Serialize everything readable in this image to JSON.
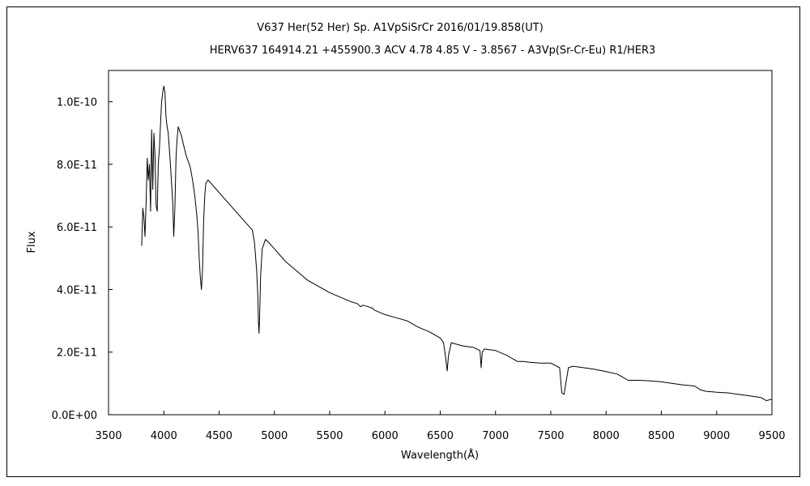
{
  "chart_data": {
    "type": "line",
    "title": "V637 Her(52 Her)   Sp. A1VpSiSrCr   2016/01/19.858(UT)",
    "subtitle": "HERV637 164914.21 +455900.3 ACV 4.78 4.85 V - 3.8567 - A3Vp(Sr-Cr-Eu) R1/HER3",
    "xlabel": "Wavelength(Å)",
    "ylabel": "Flux",
    "xlim": [
      3500,
      9500
    ],
    "ylim": [
      0,
      1.1e-10
    ],
    "grid": false,
    "x_ticks": [
      3500,
      4000,
      4500,
      5000,
      5500,
      6000,
      6500,
      7000,
      7500,
      8000,
      8500,
      9000,
      9500
    ],
    "x_tick_labels": [
      "3500",
      "4000",
      "4500",
      "5000",
      "5500",
      "6000",
      "6500",
      "7000",
      "7500",
      "8000",
      "8500",
      "9000",
      "9500"
    ],
    "y_ticks": [
      0,
      2e-11,
      4e-11,
      6e-11,
      8e-11,
      1e-10
    ],
    "y_tick_labels": [
      "0.0E+00",
      "2.0E-11",
      "4.0E-11",
      "6.0E-11",
      "8.0E-11",
      "1.0E-10"
    ],
    "series": [
      {
        "color": "#000000",
        "x": [
          3800,
          3810,
          3820,
          3830,
          3840,
          3850,
          3860,
          3870,
          3880,
          3890,
          3900,
          3910,
          3920,
          3930,
          3940,
          3950,
          3960,
          3970,
          3980,
          3990,
          4000,
          4010,
          4020,
          4030,
          4040,
          4060,
          4080,
          4090,
          4100,
          4110,
          4120,
          4130,
          4140,
          4160,
          4180,
          4200,
          4220,
          4240,
          4260,
          4280,
          4300,
          4310,
          4320,
          4330,
          4340,
          4350,
          4360,
          4370,
          4380,
          4400,
          4450,
          4500,
          4550,
          4600,
          4650,
          4700,
          4750,
          4800,
          4820,
          4840,
          4850,
          4855,
          4861,
          4867,
          4875,
          4890,
          4920,
          4950,
          5000,
          5050,
          5100,
          5200,
          5300,
          5400,
          5500,
          5600,
          5700,
          5750,
          5780,
          5800,
          5850,
          5890,
          5900,
          6000,
          6100,
          6200,
          6300,
          6400,
          6500,
          6530,
          6550,
          6563,
          6575,
          6600,
          6700,
          6800,
          6860,
          6870,
          6880,
          6900,
          7000,
          7100,
          7150,
          7200,
          7250,
          7300,
          7400,
          7500,
          7580,
          7600,
          7620,
          7640,
          7660,
          7700,
          7800,
          7900,
          8000,
          8100,
          8150,
          8200,
          8300,
          8400,
          8500,
          8600,
          8700,
          8800,
          8850,
          8900,
          9000,
          9100,
          9200,
          9300,
          9400,
          9450,
          9500
        ],
        "y": [
          5.4e-11,
          6.6e-11,
          6.3e-11,
          5.7e-11,
          6.8e-11,
          8.2e-11,
          7.5e-11,
          8e-11,
          6.5e-11,
          9.1e-11,
          7.2e-11,
          9e-11,
          8.3e-11,
          6.7e-11,
          6.5e-11,
          8e-11,
          8.5e-11,
          9.3e-11,
          1e-10,
          1.03e-10,
          1.05e-10,
          1.03e-10,
          9.5e-11,
          9.2e-11,
          9e-11,
          8e-11,
          6.8e-11,
          5.7e-11,
          6.6e-11,
          8.2e-11,
          8.8e-11,
          9.2e-11,
          9.1e-11,
          8.9e-11,
          8.6e-11,
          8.3e-11,
          8.1e-11,
          7.9e-11,
          7.5e-11,
          7e-11,
          6.3e-11,
          5.8e-11,
          5e-11,
          4.4e-11,
          4e-11,
          4.6e-11,
          6.2e-11,
          7e-11,
          7.4e-11,
          7.5e-11,
          7.3e-11,
          7.1e-11,
          6.9e-11,
          6.7e-11,
          6.5e-11,
          6.3e-11,
          6.1e-11,
          5.9e-11,
          5.5e-11,
          4.6e-11,
          3.8e-11,
          3e-11,
          2.6e-11,
          3.2e-11,
          4.4e-11,
          5.3e-11,
          5.6e-11,
          5.5e-11,
          5.3e-11,
          5.1e-11,
          4.9e-11,
          4.6e-11,
          4.3e-11,
          4.1e-11,
          3.9e-11,
          3.75e-11,
          3.6e-11,
          3.55e-11,
          3.45e-11,
          3.5e-11,
          3.45e-11,
          3.4e-11,
          3.35e-11,
          3.2e-11,
          3.1e-11,
          3e-11,
          2.8e-11,
          2.65e-11,
          2.45e-11,
          2.3e-11,
          1.8e-11,
          1.4e-11,
          1.9e-11,
          2.3e-11,
          2.2e-11,
          2.15e-11,
          2.05e-11,
          1.5e-11,
          2e-11,
          2.1e-11,
          2.05e-11,
          1.9e-11,
          1.8e-11,
          1.7e-11,
          1.7e-11,
          1.68e-11,
          1.65e-11,
          1.65e-11,
          1.5e-11,
          7e-12,
          6.5e-12,
          1.1e-11,
          1.5e-11,
          1.55e-11,
          1.5e-11,
          1.45e-11,
          1.38e-11,
          1.3e-11,
          1.2e-11,
          1.1e-11,
          1.1e-11,
          1.08e-11,
          1.05e-11,
          1e-11,
          9.5e-12,
          9.2e-12,
          8e-12,
          7.5e-12,
          7.2e-12,
          7e-12,
          6.5e-12,
          6e-12,
          5.5e-12,
          4.5e-12,
          5e-12
        ]
      }
    ]
  }
}
